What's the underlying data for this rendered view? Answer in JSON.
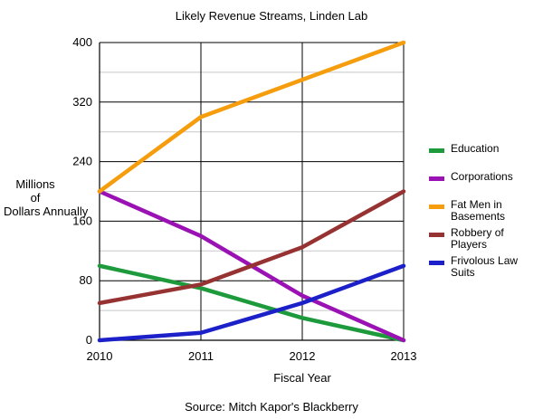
{
  "chart_data": {
    "type": "line",
    "title": "Likely Revenue Streams, Linden Lab",
    "xlabel": "Fiscal Year",
    "ylabel": "Millions of Dollars Annually",
    "source": "Source: Mitch Kapor's Blackberry",
    "x": [
      "2010",
      "2011",
      "2012",
      "2013"
    ],
    "ylim": [
      0,
      400
    ],
    "yticks": [
      "0",
      "80",
      "160",
      "240",
      "320",
      "400"
    ],
    "grid": true,
    "legend_position": "right",
    "series": [
      {
        "name": "Education",
        "color": "#1d9a3b",
        "values": [
          100,
          70,
          30,
          0
        ]
      },
      {
        "name": "Corporations",
        "color": "#9a12b3",
        "values": [
          200,
          140,
          60,
          0
        ]
      },
      {
        "name": "Fat Men in Basements",
        "color": "#f59d0d",
        "values": [
          200,
          300,
          350,
          400
        ]
      },
      {
        "name": "Robbery of Players",
        "color": "#973232",
        "values": [
          50,
          75,
          125,
          200
        ]
      },
      {
        "name": "Frivolous Law Suits",
        "color": "#1c20c8",
        "values": [
          0,
          10,
          50,
          100
        ]
      }
    ]
  }
}
